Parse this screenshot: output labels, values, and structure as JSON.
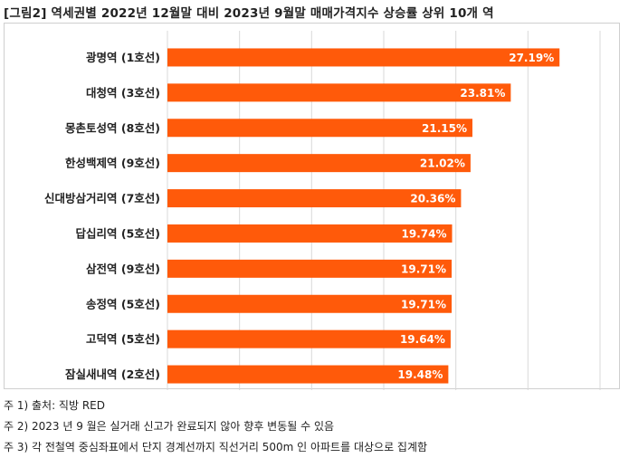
{
  "title": "[그림2] 역세권별 2022년 12월말 대비 2023년 9월말 매매가격지수 상승률 상위 10개 역",
  "colors": {
    "bar": "#FF5A0A",
    "bar_label": "#ffffff",
    "grid": "#d9d9d9",
    "category_text": "#222222"
  },
  "chart_data": {
    "type": "bar",
    "orientation": "horizontal",
    "categories": [
      "광명역 (1호선)",
      "대청역 (3호선)",
      "몽촌토성역 (8호선)",
      "한성백제역 (9호선)",
      "신대방삼거리역 (7호선)",
      "답십리역 (5호선)",
      "삼전역 (9호선)",
      "송정역 (5호선)",
      "고덕역 (5호선)",
      "잠실새내역 (2호선)"
    ],
    "values": [
      27.19,
      23.81,
      21.15,
      21.02,
      20.36,
      19.74,
      19.71,
      19.71,
      19.64,
      19.48
    ],
    "value_labels": [
      "27.19%",
      "23.81%",
      "21.15%",
      "21.02%",
      "20.36%",
      "19.74%",
      "19.71%",
      "19.71%",
      "19.64%",
      "19.48%"
    ],
    "xlim": [
      0,
      30
    ],
    "gridlines": [
      0,
      5,
      10,
      15,
      20,
      25,
      30
    ],
    "grid": true,
    "legend": "none",
    "xlabel": "",
    "ylabel": ""
  },
  "notes": [
    "주 1) 출처: 직방 RED",
    "주 2) 2023 년 9 월은 실거래 신고가 완료되지 않아 향후 변동될 수 있음",
    "주 3) 각 전철역 중심좌표에서 단지 경계선까지 직선거리 500m 인 아파트를 대상으로 집계함"
  ]
}
